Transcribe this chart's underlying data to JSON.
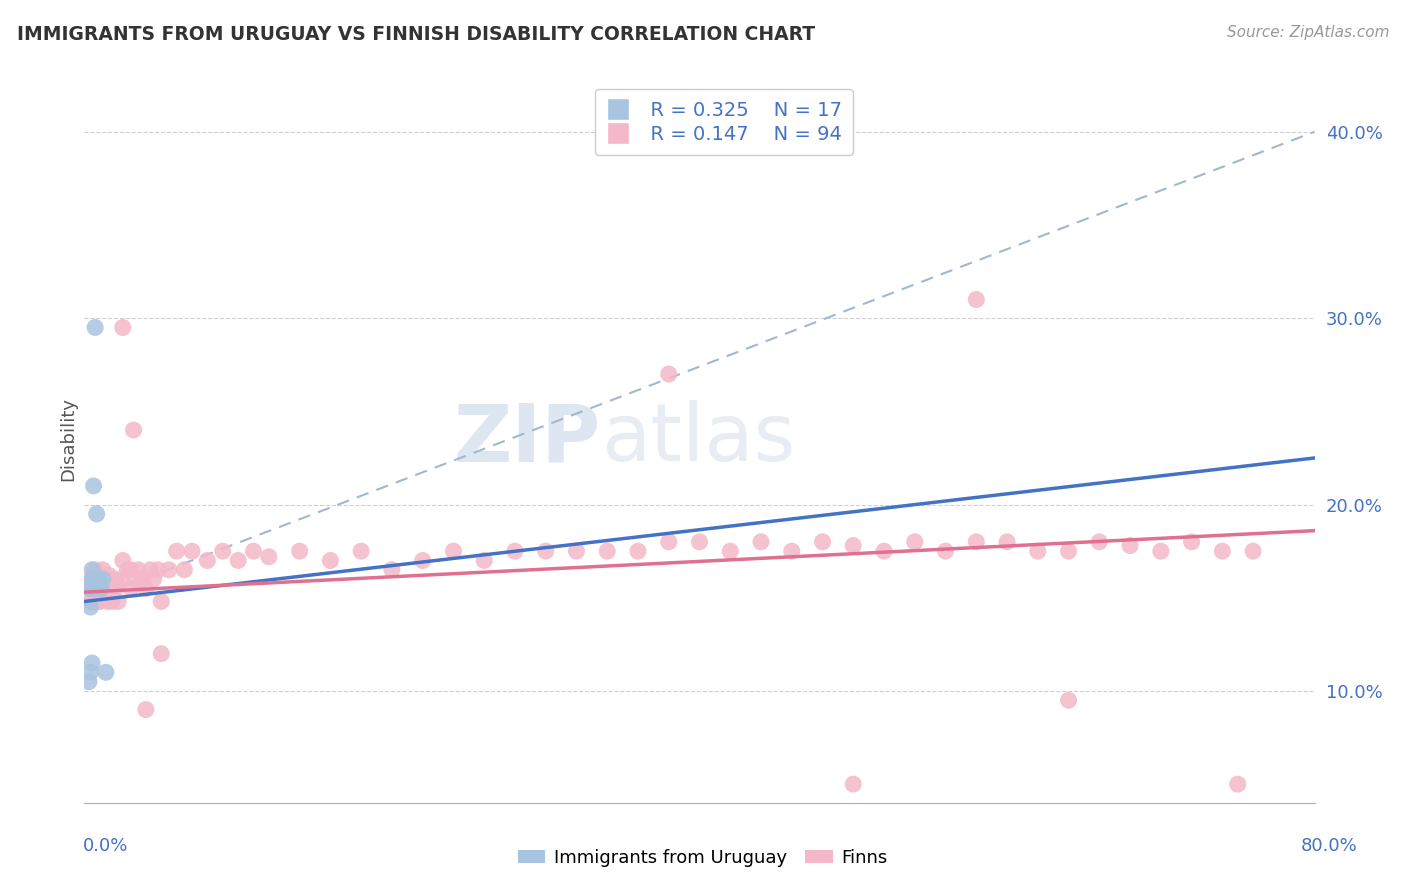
{
  "title": "IMMIGRANTS FROM URUGUAY VS FINNISH DISABILITY CORRELATION CHART",
  "source": "Source: ZipAtlas.com",
  "ylabel": "Disability",
  "xlim": [
    0.0,
    0.8
  ],
  "ylim": [
    0.04,
    0.43
  ],
  "yticks": [
    0.1,
    0.2,
    0.3,
    0.4
  ],
  "ytick_labels": [
    "10.0%",
    "20.0%",
    "30.0%",
    "40.0%"
  ],
  "legend1_R": "0.325",
  "legend1_N": "17",
  "legend2_R": "0.147",
  "legend2_N": "94",
  "watermark_zip": "ZIP",
  "watermark_atlas": "atlas",
  "uruguay_color": "#a8c4e0",
  "finn_color": "#f4b8c8",
  "uruguay_line_color": "#4472c4",
  "finn_line_color": "#e07090",
  "dash_line_color": "#a0b8d0",
  "uruguay_line_x0": 0.0,
  "uruguay_line_y0": 0.148,
  "uruguay_line_x1": 0.8,
  "uruguay_line_y1": 0.225,
  "finn_line_x0": 0.0,
  "finn_line_y0": 0.153,
  "finn_line_x1": 0.8,
  "finn_line_y1": 0.186,
  "dash_line_x0": 0.0,
  "dash_line_y0": 0.148,
  "dash_line_x1": 0.8,
  "dash_line_y1": 0.4,
  "uru_x": [
    0.003,
    0.004,
    0.005,
    0.005,
    0.006,
    0.007,
    0.008,
    0.008,
    0.009,
    0.01,
    0.011,
    0.012,
    0.014,
    0.003,
    0.004,
    0.005,
    0.006
  ],
  "uru_y": [
    0.155,
    0.145,
    0.16,
    0.165,
    0.155,
    0.295,
    0.16,
    0.195,
    0.16,
    0.155,
    0.155,
    0.16,
    0.11,
    0.105,
    0.11,
    0.115,
    0.21
  ],
  "finn_x": [
    0.003,
    0.004,
    0.004,
    0.005,
    0.005,
    0.005,
    0.006,
    0.006,
    0.006,
    0.007,
    0.007,
    0.007,
    0.008,
    0.008,
    0.009,
    0.009,
    0.01,
    0.01,
    0.011,
    0.012,
    0.012,
    0.013,
    0.014,
    0.015,
    0.016,
    0.017,
    0.018,
    0.019,
    0.02,
    0.021,
    0.022,
    0.024,
    0.025,
    0.028,
    0.03,
    0.032,
    0.033,
    0.035,
    0.038,
    0.04,
    0.043,
    0.045,
    0.048,
    0.05,
    0.055,
    0.06,
    0.065,
    0.07,
    0.08,
    0.09,
    0.1,
    0.11,
    0.12,
    0.14,
    0.16,
    0.18,
    0.2,
    0.22,
    0.24,
    0.26,
    0.28,
    0.3,
    0.32,
    0.34,
    0.36,
    0.38,
    0.4,
    0.42,
    0.44,
    0.46,
    0.48,
    0.5,
    0.52,
    0.54,
    0.56,
    0.58,
    0.6,
    0.62,
    0.64,
    0.66,
    0.68,
    0.7,
    0.72,
    0.74,
    0.76,
    0.03,
    0.025,
    0.04,
    0.05,
    0.38,
    0.5,
    0.64,
    0.75,
    0.58
  ],
  "finn_y": [
    0.155,
    0.16,
    0.148,
    0.148,
    0.16,
    0.155,
    0.148,
    0.16,
    0.155,
    0.148,
    0.16,
    0.165,
    0.15,
    0.162,
    0.148,
    0.155,
    0.148,
    0.16,
    0.15,
    0.16,
    0.165,
    0.155,
    0.15,
    0.148,
    0.162,
    0.155,
    0.148,
    0.16,
    0.155,
    0.158,
    0.148,
    0.16,
    0.17,
    0.165,
    0.155,
    0.24,
    0.16,
    0.165,
    0.16,
    0.155,
    0.165,
    0.16,
    0.165,
    0.12,
    0.165,
    0.175,
    0.165,
    0.175,
    0.17,
    0.175,
    0.17,
    0.175,
    0.172,
    0.175,
    0.17,
    0.175,
    0.165,
    0.17,
    0.175,
    0.17,
    0.175,
    0.175,
    0.175,
    0.175,
    0.175,
    0.18,
    0.18,
    0.175,
    0.18,
    0.175,
    0.18,
    0.178,
    0.175,
    0.18,
    0.175,
    0.18,
    0.18,
    0.175,
    0.175,
    0.18,
    0.178,
    0.175,
    0.18,
    0.175,
    0.175,
    0.165,
    0.295,
    0.09,
    0.148,
    0.27,
    0.05,
    0.095,
    0.05,
    0.31
  ]
}
